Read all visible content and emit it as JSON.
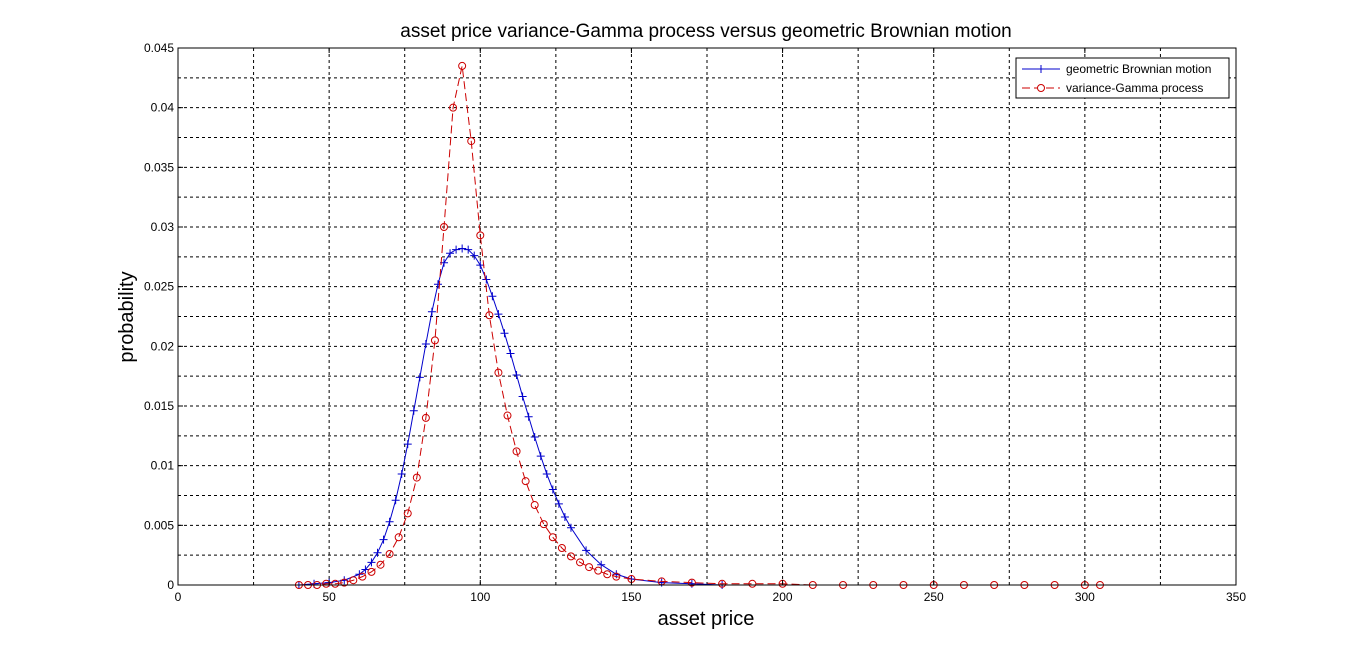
{
  "chart_data": {
    "type": "line",
    "title": "asset price variance-Gamma process versus geometric Brownian motion",
    "xlabel": "asset price",
    "ylabel": "probability",
    "xlim": [
      0,
      350
    ],
    "ylim": [
      0,
      0.045
    ],
    "xticks": [
      0,
      50,
      100,
      150,
      200,
      250,
      300,
      350
    ],
    "xtick_labels": [
      "0",
      "50",
      "100",
      "150",
      "200",
      "250",
      "300",
      "350"
    ],
    "yticks": [
      0,
      0.005,
      0.01,
      0.015,
      0.02,
      0.025,
      0.03,
      0.035,
      0.04,
      0.045
    ],
    "ytick_labels": [
      "0",
      "0.005",
      "0.01",
      "0.015",
      "0.02",
      "0.025",
      "0.03",
      "0.035",
      "0.04",
      "0.045"
    ],
    "grid": true,
    "legend_position": "top-right",
    "series": [
      {
        "name": "geometric Brownian motion",
        "color": "#0000cc",
        "marker": "plus",
        "line_style": "solid",
        "x": [
          40,
          45,
          50,
          55,
          60,
          62,
          64,
          66,
          68,
          70,
          72,
          74,
          76,
          78,
          80,
          82,
          84,
          86,
          88,
          90,
          92,
          94,
          96,
          98,
          100,
          102,
          104,
          106,
          108,
          110,
          112,
          114,
          116,
          118,
          120,
          122,
          124,
          126,
          128,
          130,
          135,
          140,
          145,
          150,
          160,
          170,
          180
        ],
        "y": [
          0,
          0.0001,
          0.0002,
          0.0004,
          0.0009,
          0.0013,
          0.0019,
          0.0027,
          0.0038,
          0.0053,
          0.0071,
          0.0093,
          0.0118,
          0.0146,
          0.0174,
          0.0202,
          0.0229,
          0.0252,
          0.027,
          0.0278,
          0.0281,
          0.0282,
          0.0281,
          0.0276,
          0.0268,
          0.0256,
          0.0242,
          0.0227,
          0.0211,
          0.0194,
          0.0176,
          0.0158,
          0.0141,
          0.0124,
          0.0108,
          0.0093,
          0.008,
          0.0068,
          0.0057,
          0.0048,
          0.0029,
          0.0017,
          0.0009,
          0.0005,
          0.0002,
          0.0001,
          0
        ]
      },
      {
        "name": "variance-Gamma process",
        "color": "#cc0000",
        "marker": "circle",
        "line_style": "dashed",
        "x": [
          40,
          43,
          46,
          49,
          52,
          55,
          58,
          61,
          64,
          67,
          70,
          73,
          76,
          79,
          82,
          85,
          88,
          91,
          94,
          97,
          100,
          103,
          106,
          109,
          112,
          115,
          118,
          121,
          124,
          127,
          130,
          133,
          136,
          139,
          142,
          145,
          150,
          160,
          170,
          180,
          190,
          200,
          210,
          220,
          230,
          240,
          250,
          260,
          270,
          280,
          290,
          300,
          305
        ],
        "y": [
          0,
          0,
          0,
          0.0001,
          0.0001,
          0.0002,
          0.0004,
          0.0007,
          0.0011,
          0.0017,
          0.0026,
          0.004,
          0.006,
          0.009,
          0.014,
          0.0205,
          0.03,
          0.04,
          0.0435,
          0.0372,
          0.0293,
          0.0226,
          0.0178,
          0.0142,
          0.0112,
          0.0087,
          0.0067,
          0.0051,
          0.004,
          0.0031,
          0.0024,
          0.0019,
          0.0015,
          0.0012,
          0.0009,
          0.0007,
          0.0005,
          0.0003,
          0.0002,
          0.0001,
          0.0001,
          0.0001,
          0,
          0,
          0,
          0,
          0,
          0,
          0,
          0,
          0,
          0,
          0
        ]
      }
    ]
  }
}
